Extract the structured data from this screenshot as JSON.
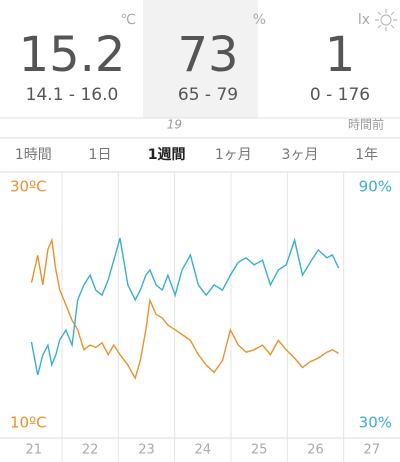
{
  "header": {
    "cells": [
      {
        "value": "15.2",
        "unit": "℃",
        "range": "14.1 - 16.0"
      },
      {
        "value": "73",
        "unit": "%",
        "range": "65 - 79"
      },
      {
        "value": "1",
        "unit": "lx",
        "range": "0 - 176"
      }
    ],
    "updated": {
      "number": "19",
      "text": "時間前"
    }
  },
  "tabs": {
    "items": [
      "1時間",
      "1日",
      "1週間",
      "1ヶ月",
      "3ヶ月",
      "1年"
    ],
    "selected": 2
  },
  "chart_data": {
    "type": "line",
    "x": [
      20.96,
      21.07,
      21.16,
      21.25,
      21.32,
      21.39,
      21.46,
      21.57,
      21.68,
      21.78,
      21.89,
      22.0,
      22.1,
      22.21,
      22.32,
      22.42,
      22.53,
      22.67,
      22.8,
      22.89,
      22.99,
      23.06,
      23.17,
      23.28,
      23.38,
      23.51,
      23.63,
      23.78,
      23.92,
      24.06,
      24.2,
      24.35,
      24.49,
      24.63,
      24.77,
      24.91,
      25.06,
      25.2,
      25.34,
      25.48,
      25.63,
      25.77,
      25.91,
      26.05,
      26.2,
      26.3,
      26.41
    ],
    "series": [
      {
        "color": "#e8922e",
        "values": [
          21.9,
          24.2,
          21.7,
          24.7,
          25.5,
          23,
          21.3,
          20,
          18.7,
          17.9,
          16.2,
          16.6,
          16.4,
          16.8,
          15.8,
          16.6,
          15.8,
          14.9,
          13.8,
          15.3,
          17.9,
          20.4,
          19.2,
          18.9,
          18.3,
          17.9,
          17.5,
          17,
          15.8,
          14.9,
          14.3,
          15.3,
          17.9,
          16.6,
          16,
          16.2,
          16.6,
          15.8,
          17,
          16.2,
          15.5,
          14.7,
          15.2,
          15.5,
          16,
          16.2,
          15.9
        ]
      },
      {
        "color": "#3aaed0",
        "axis": "y2",
        "values": [
          50.6,
          42.2,
          47.3,
          49.8,
          44.8,
          47.3,
          51.1,
          53.6,
          49.8,
          61.3,
          65.1,
          67.6,
          63.8,
          62.5,
          66.4,
          71.4,
          77,
          65.1,
          61.3,
          63.8,
          67.6,
          68.9,
          65.1,
          63.8,
          67.6,
          62.5,
          68.9,
          72.7,
          65.1,
          62.5,
          65.1,
          63.8,
          67.6,
          70.9,
          72,
          70.2,
          71.4,
          65.1,
          68.9,
          70.2,
          76.5,
          67.6,
          70.9,
          74,
          72,
          72.7,
          69.4
        ]
      }
    ],
    "xlim": [
      20.4,
      27.5
    ],
    "xticks": [
      21,
      22,
      23,
      24,
      25,
      26,
      27
    ],
    "ylim": [
      10,
      30
    ],
    "yticks": [
      {
        "value": 10,
        "label": "10ºC"
      },
      {
        "value": 30,
        "label": "30ºC"
      }
    ],
    "y2lim": [
      30,
      90
    ],
    "y2ticks": [
      {
        "value": 30,
        "label": "30%"
      },
      {
        "value": 90,
        "label": "90%"
      }
    ],
    "grid": true
  }
}
